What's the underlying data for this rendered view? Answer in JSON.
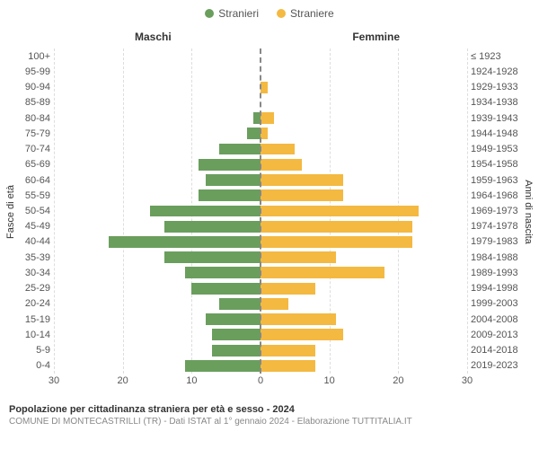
{
  "legend": {
    "male_label": "Stranieri",
    "female_label": "Straniere",
    "male_color": "#6a9e5d",
    "female_color": "#f4b941"
  },
  "headers": {
    "male": "Maschi",
    "female": "Femmine"
  },
  "y_labels": {
    "left": "Fasce di età",
    "right": "Anni di nascita"
  },
  "footer": {
    "title": "Popolazione per cittadinanza straniera per età e sesso - 2024",
    "subtitle": "COMUNE DI MONTECASTRILLI (TR) - Dati ISTAT al 1° gennaio 2024 - Elaborazione TUTTITALIA.IT"
  },
  "chart": {
    "type": "population-pyramid",
    "xmax": 30,
    "xtick_step": 10,
    "x_ticks_left": [
      "30",
      "20",
      "10"
    ],
    "x_ticks_right": [
      "10",
      "20",
      "30"
    ],
    "x_tick_center": "0",
    "grid_color": "#dddddd",
    "centerline_color": "#888888",
    "background_color": "#ffffff",
    "tick_fontsize": 11,
    "label_fontsize": 11,
    "rows": [
      {
        "age": "100+",
        "birth": "≤ 1923",
        "male": 0,
        "female": 0
      },
      {
        "age": "95-99",
        "birth": "1924-1928",
        "male": 0,
        "female": 0
      },
      {
        "age": "90-94",
        "birth": "1929-1933",
        "male": 0,
        "female": 1
      },
      {
        "age": "85-89",
        "birth": "1934-1938",
        "male": 0,
        "female": 0
      },
      {
        "age": "80-84",
        "birth": "1939-1943",
        "male": 1,
        "female": 2
      },
      {
        "age": "75-79",
        "birth": "1944-1948",
        "male": 2,
        "female": 1
      },
      {
        "age": "70-74",
        "birth": "1949-1953",
        "male": 6,
        "female": 5
      },
      {
        "age": "65-69",
        "birth": "1954-1958",
        "male": 9,
        "female": 6
      },
      {
        "age": "60-64",
        "birth": "1959-1963",
        "male": 8,
        "female": 12
      },
      {
        "age": "55-59",
        "birth": "1964-1968",
        "male": 9,
        "female": 12
      },
      {
        "age": "50-54",
        "birth": "1969-1973",
        "male": 16,
        "female": 23
      },
      {
        "age": "45-49",
        "birth": "1974-1978",
        "male": 14,
        "female": 22
      },
      {
        "age": "40-44",
        "birth": "1979-1983",
        "male": 22,
        "female": 22
      },
      {
        "age": "35-39",
        "birth": "1984-1988",
        "male": 14,
        "female": 11
      },
      {
        "age": "30-34",
        "birth": "1989-1993",
        "male": 11,
        "female": 18
      },
      {
        "age": "25-29",
        "birth": "1994-1998",
        "male": 10,
        "female": 8
      },
      {
        "age": "20-24",
        "birth": "1999-2003",
        "male": 6,
        "female": 4
      },
      {
        "age": "15-19",
        "birth": "2004-2008",
        "male": 8,
        "female": 11
      },
      {
        "age": "10-14",
        "birth": "2009-2013",
        "male": 7,
        "female": 12
      },
      {
        "age": "5-9",
        "birth": "2014-2018",
        "male": 7,
        "female": 8
      },
      {
        "age": "0-4",
        "birth": "2019-2023",
        "male": 11,
        "female": 8
      }
    ]
  }
}
